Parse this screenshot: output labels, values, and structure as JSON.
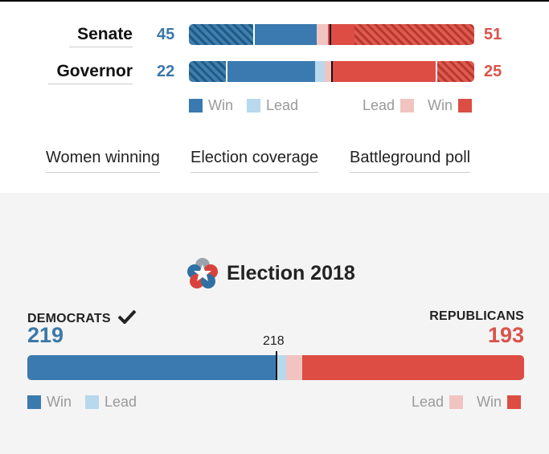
{
  "senate": {
    "label": "Senate",
    "dem": "45",
    "rep": "51"
  },
  "governor": {
    "label": "Governor",
    "dem": "22",
    "rep": "25"
  },
  "legend": {
    "win": "Win",
    "lead": "Lead"
  },
  "links": [
    "Women winning",
    "Election coverage",
    "Battleground poll"
  ],
  "brand": {
    "title": "Election 2018"
  },
  "house": {
    "dem_label": "DEMOCRATS",
    "dem_total": "219",
    "rep_label": "REPUBLICANS",
    "rep_total": "193",
    "threshold": "218"
  },
  "colors": {
    "dem": "#3a78a8",
    "rep": "#d9534a",
    "dem_lead": "#b8d8ec",
    "rep_lead": "#f2c4c1"
  }
}
